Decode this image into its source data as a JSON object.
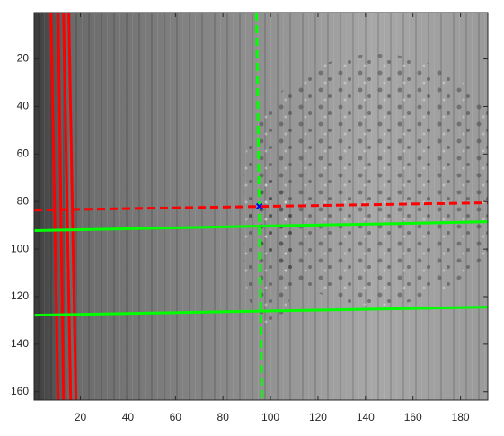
{
  "chart_data": {
    "type": "image",
    "xlim": [
      0.5,
      191.5
    ],
    "ylim": [
      0.5,
      163.5
    ],
    "y_reversed": true,
    "xticks": [
      20,
      40,
      60,
      80,
      100,
      120,
      140,
      160,
      180
    ],
    "yticks": [
      20,
      40,
      60,
      80,
      100,
      120,
      140,
      160
    ],
    "series": [
      {
        "color": "#ff0000",
        "style": "solid",
        "width": 3,
        "x": [
          7.6,
          10.6
        ],
        "values": [
          0.5,
          163.5
        ]
      },
      {
        "color": "#ff0000",
        "style": "solid",
        "width": 3,
        "x": [
          10.6,
          12.9
        ],
        "values": [
          0.5,
          163.5
        ]
      },
      {
        "color": "#ff0000",
        "style": "solid",
        "width": 3,
        "x": [
          12.9,
          15.9
        ],
        "values": [
          0.5,
          163.5
        ]
      },
      {
        "color": "#ff0000",
        "style": "solid",
        "width": 3,
        "x": [
          15.1,
          18.1
        ],
        "values": [
          0.5,
          163.5
        ]
      },
      {
        "color": "#00ff00",
        "style": "solid",
        "width": 3,
        "x": [
          0.5,
          191.5
        ],
        "values": [
          92.2,
          88.5
        ]
      },
      {
        "color": "#00ff00",
        "style": "solid",
        "width": 3,
        "x": [
          0.5,
          191.5
        ],
        "values": [
          127.8,
          124.4
        ]
      },
      {
        "color": "#00ff00",
        "style": "dashed",
        "width": 3,
        "x": [
          94.1,
          96.4
        ],
        "values": [
          0.5,
          163.5
        ]
      },
      {
        "color": "#ff0000",
        "style": "dashed",
        "width": 3,
        "x": [
          0.5,
          191.5
        ],
        "values": [
          83.6,
          80.5
        ]
      },
      {
        "color": "#0000ff",
        "style": "marker",
        "width": 2,
        "x": [
          95.3
        ],
        "values": [
          82
        ]
      }
    ]
  }
}
